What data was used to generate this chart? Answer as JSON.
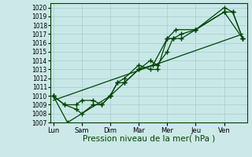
{
  "xlabel": "Pression niveau de la mer( hPa )",
  "background_color": "#cce8e8",
  "plot_bg_color": "#c8e8e8",
  "grid_color": "#aacccc",
  "line_color": "#004400",
  "ylim": [
    1007,
    1020.5
  ],
  "xlim": [
    -0.1,
    6.8
  ],
  "day_labels": [
    "Lun",
    "Sam",
    "Dim",
    "Mar",
    "Mer",
    "Jeu",
    "Ven"
  ],
  "day_positions": [
    0,
    1,
    2,
    3,
    4,
    5,
    6
  ],
  "ytick_labels": [
    "1007",
    "1008",
    "1009",
    "1010",
    "1011",
    "1012",
    "1013",
    "1014",
    "1015",
    "1016",
    "1017",
    "1018",
    "1019",
    "1020"
  ],
  "ytick_values": [
    1007,
    1008,
    1009,
    1010,
    1011,
    1012,
    1013,
    1014,
    1015,
    1016,
    1017,
    1018,
    1019,
    1020
  ],
  "series": [
    {
      "x": [
        0.0,
        0.4,
        0.8,
        1.0,
        1.4,
        1.7,
        2.0,
        2.25,
        2.5,
        3.0,
        3.4,
        3.65,
        4.0,
        4.2,
        4.5,
        5.0,
        6.0,
        6.3,
        6.65
      ],
      "y": [
        1010.0,
        1009.0,
        1008.5,
        1008.0,
        1009.0,
        1009.0,
        1010.0,
        1011.5,
        1011.5,
        1013.0,
        1014.0,
        1013.5,
        1015.0,
        1016.5,
        1016.5,
        1017.5,
        1020.0,
        1019.5,
        1016.5
      ]
    },
    {
      "x": [
        0.0,
        0.4,
        0.8,
        1.0,
        1.4,
        1.7,
        2.0,
        2.25,
        2.5,
        3.0,
        3.4,
        3.65,
        4.0,
        4.2,
        4.5,
        5.0,
        6.0,
        6.3,
        6.65
      ],
      "y": [
        1010.0,
        1009.0,
        1009.0,
        1009.5,
        1009.5,
        1009.0,
        1010.0,
        1011.5,
        1012.0,
        1013.5,
        1013.0,
        1013.0,
        1016.5,
        1016.5,
        1017.0,
        1017.5,
        1019.5,
        1019.5,
        1016.5
      ]
    },
    {
      "x": [
        0.0,
        0.5,
        2.0,
        2.5,
        3.0,
        3.5,
        4.0,
        4.3,
        5.0,
        6.0,
        6.65
      ],
      "y": [
        1010.0,
        1007.0,
        1010.0,
        1011.5,
        1013.0,
        1013.5,
        1016.5,
        1017.5,
        1017.5,
        1019.5,
        1016.5
      ]
    }
  ],
  "trend_x": [
    0.0,
    6.65
  ],
  "trend_y": [
    1009.5,
    1017.0
  ],
  "marker": "+",
  "marker_size": 4,
  "line_width": 0.9,
  "ylabel_fontsize": 5.5,
  "xlabel_fontsize": 7.5,
  "xtick_fontsize": 6.0
}
